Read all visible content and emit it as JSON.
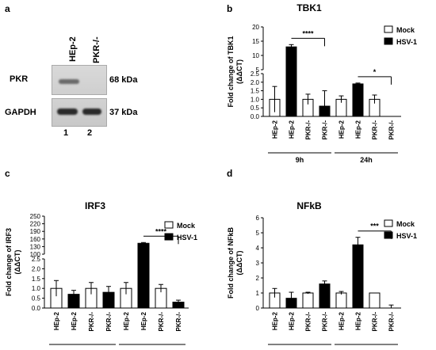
{
  "panel_letters": {
    "a": "a",
    "b": "b",
    "c": "c",
    "d": "d"
  },
  "western_blot": {
    "lane_headers": [
      "HEp-2",
      "PKR-/-"
    ],
    "rows": [
      {
        "protein": "PKR",
        "size": "68 kDa"
      },
      {
        "protein": "GAPDH",
        "size": "37 kDa"
      }
    ],
    "lane_numbers": [
      "1",
      "2"
    ]
  },
  "chart_data": [
    {
      "id": "b",
      "type": "bar",
      "title": "TBK1",
      "ylabel": "Fold change of TBK1 (ΔΔCT)",
      "ylabel_lines": [
        "Fold change of TBK1",
        "(ΔΔCT)"
      ],
      "axis_break": true,
      "yticks_lower": [
        "0.0",
        "0.5",
        "1.0",
        "1.5",
        "2.0",
        "2.5"
      ],
      "yticks_upper": [
        "5",
        "10",
        "15",
        "20"
      ],
      "categories": [
        "HEp-2",
        "HEp-2",
        "PKR-/-",
        "PKR-/-",
        "HEp-2",
        "HEp-2",
        "PKR-/-",
        "PKR-/-"
      ],
      "fills": [
        "white",
        "black",
        "white",
        "black",
        "white",
        "black",
        "white",
        "black"
      ],
      "values": [
        1.0,
        13.0,
        1.0,
        0.6,
        1.0,
        1.9,
        1.0,
        0.0
      ],
      "errors": [
        0.75,
        0.8,
        0.3,
        0.9,
        0.2,
        0.05,
        0.25,
        0.0
      ],
      "groups": [
        "9h",
        "24h"
      ],
      "legend": [
        "Mock",
        "HSV-1"
      ],
      "significance": [
        {
          "bars": [
            1,
            3
          ],
          "label": "****"
        },
        {
          "bars": [
            5,
            7
          ],
          "label": "*"
        }
      ]
    },
    {
      "id": "c",
      "type": "bar",
      "title": "IRF3",
      "ylabel": "Fold change of IRF3 (ΔΔCT)",
      "ylabel_lines": [
        "Fold change of IRF3",
        "(ΔΔCT)"
      ],
      "axis_break": true,
      "yticks_lower": [
        "0.0",
        "0.5",
        "1.0",
        "1.5",
        "2.0",
        "2.5"
      ],
      "yticks_upper": [
        "100",
        "130",
        "160",
        "190",
        "220",
        "250"
      ],
      "categories": [
        "HEp-2",
        "HEp-2",
        "PKR-/-",
        "PKR-/-",
        "HEp-2",
        "HEp-2",
        "PKR-/-",
        "PKR-/-"
      ],
      "fills": [
        "white",
        "black",
        "white",
        "black",
        "white",
        "black",
        "white",
        "black"
      ],
      "values": [
        1.0,
        0.7,
        1.0,
        0.8,
        1.0,
        143,
        1.0,
        0.3
      ],
      "errors": [
        0.4,
        0.2,
        0.3,
        0.3,
        0.3,
        3,
        0.2,
        0.1
      ],
      "groups": [
        "9h",
        "24h"
      ],
      "legend": [
        "Mock",
        "HSV-1"
      ],
      "significance": [
        {
          "bars": [
            5,
            7
          ],
          "label": "****"
        }
      ]
    },
    {
      "id": "d",
      "type": "bar",
      "title": "NFkB",
      "ylabel": "Fold change of NFkB (ΔΔCT)",
      "ylabel_lines": [
        "Fold change of NFkB",
        "(ΔΔCT)"
      ],
      "axis_break": false,
      "yticks": [
        "0",
        "1",
        "2",
        "3",
        "4",
        "5",
        "6"
      ],
      "ylim": [
        0,
        6
      ],
      "categories": [
        "HEp-2",
        "HEp-2",
        "PKR-/-",
        "PKR-/-",
        "HEp-2",
        "HEp-2",
        "PKR-/-",
        "PKR-/-"
      ],
      "fills": [
        "white",
        "black",
        "white",
        "black",
        "white",
        "black",
        "white",
        "black"
      ],
      "values": [
        1.0,
        0.65,
        1.0,
        1.6,
        1.0,
        4.2,
        1.0,
        0.0
      ],
      "errors": [
        0.3,
        0.4,
        0.05,
        0.2,
        0.1,
        0.5,
        0.0,
        0.2
      ],
      "groups": [
        "9h",
        "24h"
      ],
      "legend": [
        "Mock",
        "HSV-1"
      ],
      "significance": [
        {
          "bars": [
            5,
            7
          ],
          "label": "***"
        }
      ]
    }
  ]
}
